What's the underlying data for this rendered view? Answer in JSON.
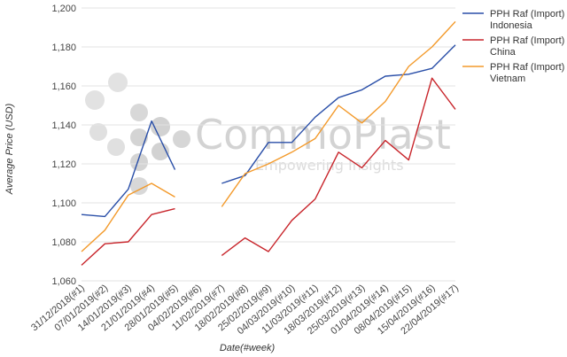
{
  "watermark": {
    "brand": "CommoPlast",
    "tagline": "Empowering Insights"
  },
  "chart_data": {
    "type": "line",
    "xlabel": "Date(#week)",
    "ylabel": "Average Price (USD)",
    "ylim": [
      1060,
      1200
    ],
    "yticks": [
      1060,
      1080,
      1100,
      1120,
      1140,
      1160,
      1180,
      1200
    ],
    "ytick_labels": [
      "1,060",
      "1,080",
      "1,100",
      "1,120",
      "1,140",
      "1,160",
      "1,180",
      "1,200"
    ],
    "grid": "horizontal",
    "legend_position": "right",
    "categories": [
      "31/12/2018(#1)",
      "07/01/2019(#2)",
      "14/01/2019(#3)",
      "21/01/2019(#4)",
      "28/01/2019(#5)",
      "04/02/2019(#6)",
      "11/02/2019(#7)",
      "18/02/2019(#8)",
      "25/02/2019(#9)",
      "04/03/2019(#10)",
      "11/03/2019(#11)",
      "18/03/2019(#12)",
      "25/03/2019(#13)",
      "01/04/2019(#14)",
      "08/04/2019(#15)",
      "15/04/2019(#16)",
      "22/04/2019(#17)"
    ],
    "series": [
      {
        "name": "PPH Raf (Import) - Indonesia",
        "legend_lines": [
          "PPH Raf (Import) -",
          "Indonesia"
        ],
        "color": "#2a4fa8",
        "points": [
          [
            0,
            1094
          ],
          [
            1,
            1093
          ],
          [
            2,
            1107
          ],
          [
            3,
            1142
          ],
          [
            4,
            1117
          ],
          [
            6,
            1110
          ],
          [
            7,
            1114
          ],
          [
            8,
            1131
          ],
          [
            9,
            1131
          ],
          [
            10,
            1144
          ],
          [
            11,
            1154
          ],
          [
            12,
            1158
          ],
          [
            13,
            1165
          ],
          [
            14,
            1166
          ],
          [
            15,
            1169
          ],
          [
            16,
            1181
          ]
        ]
      },
      {
        "name": "PPH Raf (Import) - China",
        "legend_lines": [
          "PPH Raf (Import) -",
          "China"
        ],
        "color": "#c8252b",
        "points": [
          [
            0,
            1068
          ],
          [
            1,
            1079
          ],
          [
            2,
            1080
          ],
          [
            3,
            1094
          ],
          [
            4,
            1097
          ],
          [
            6,
            1073
          ],
          [
            7,
            1082
          ],
          [
            8,
            1075
          ],
          [
            9,
            1091
          ],
          [
            10,
            1102
          ],
          [
            11,
            1126
          ],
          [
            12,
            1118
          ],
          [
            13,
            1132
          ],
          [
            14,
            1122
          ],
          [
            15,
            1164
          ],
          [
            16,
            1148
          ]
        ]
      },
      {
        "name": "PPH Raf (Import) - Vietnam",
        "legend_lines": [
          "PPH Raf (Import) -",
          "Vietnam"
        ],
        "color": "#f39a2b",
        "points": [
          [
            0,
            1075
          ],
          [
            1,
            1086
          ],
          [
            2,
            1104
          ],
          [
            3,
            1110
          ],
          [
            4,
            1103
          ],
          [
            6,
            1098
          ],
          [
            7,
            1115
          ],
          [
            8,
            1120
          ],
          [
            9,
            1126
          ],
          [
            10,
            1133
          ],
          [
            11,
            1150
          ],
          [
            12,
            1141
          ],
          [
            13,
            1152
          ],
          [
            14,
            1170
          ],
          [
            15,
            1180
          ],
          [
            16,
            1193
          ]
        ]
      }
    ]
  }
}
